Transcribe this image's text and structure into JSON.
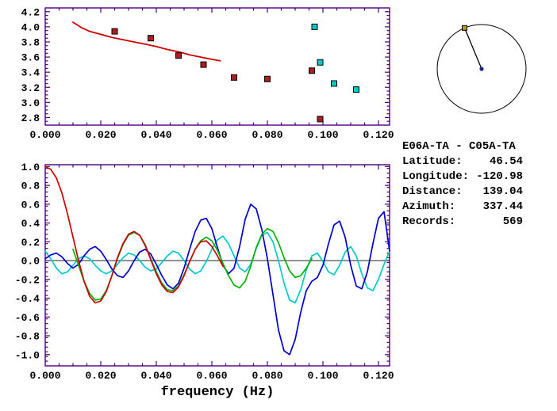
{
  "colors": {
    "frame": "#4b0082",
    "tick_text": "#000000",
    "background": "#ffffff",
    "dial_outline": "#000000",
    "dial_center": "#22228b",
    "dial_marker": "#b09a20",
    "zero_line": "#000000"
  },
  "station_info": {
    "pair": "E06A-TA - C05A-TA",
    "fields": [
      {
        "label": "Latitude:",
        "value": "46.54"
      },
      {
        "label": "Longitude:",
        "value": "-120.98"
      },
      {
        "label": "Distance:",
        "value": "139.04"
      },
      {
        "label": "Azimuth:",
        "value": "337.44"
      },
      {
        "label": "Records:",
        "value": "569"
      }
    ]
  },
  "chart_data": [
    {
      "type": "scatter",
      "name": "dispersion",
      "title": "",
      "xlabel": "",
      "ylabel": "",
      "xlim": [
        0,
        0.124
      ],
      "ylim": [
        2.7,
        4.25
      ],
      "grid": false,
      "x_ticks": [
        0,
        0.02,
        0.04,
        0.06,
        0.08,
        0.1,
        0.12
      ],
      "x_tick_labels": [
        "0.000",
        "0.020",
        "0.040",
        "0.060",
        "0.080",
        "0.100",
        "0.120"
      ],
      "y_ticks": [
        2.8,
        3.0,
        3.2,
        3.4,
        3.6,
        3.8,
        4.0,
        4.2
      ],
      "y_tick_labels": [
        "2.8",
        "3.0",
        "3.2",
        "3.4",
        "3.6",
        "3.8",
        "4.0",
        "4.2"
      ],
      "series": [
        {
          "name": "reference-dispersion-curve",
          "type": "line",
          "color": "#cc0000",
          "width": 1.8,
          "x": [
            0.01,
            0.013,
            0.016,
            0.02,
            0.024,
            0.028,
            0.032,
            0.036,
            0.04,
            0.044,
            0.048,
            0.052,
            0.056,
            0.06,
            0.063
          ],
          "y": [
            4.06,
            3.99,
            3.94,
            3.9,
            3.86,
            3.83,
            3.8,
            3.77,
            3.74,
            3.7,
            3.67,
            3.63,
            3.6,
            3.57,
            3.55
          ]
        },
        {
          "name": "phase-velocity-picks-red",
          "type": "square",
          "color": "#aa2020",
          "edge": "#000000",
          "size": 7,
          "x": [
            0.025,
            0.038,
            0.048,
            0.057,
            0.068,
            0.08,
            0.096,
            0.099
          ],
          "y": [
            3.94,
            3.85,
            3.62,
            3.5,
            3.33,
            3.31,
            3.42,
            2.78
          ]
        },
        {
          "name": "phase-velocity-picks-cyan",
          "type": "square",
          "color": "#00c8c8",
          "edge": "#000000",
          "size": 7,
          "x": [
            0.097,
            0.099,
            0.104,
            0.112
          ],
          "y": [
            4.0,
            3.53,
            3.25,
            3.17
          ]
        }
      ]
    },
    {
      "type": "line",
      "name": "cross-spectrum",
      "title": "",
      "xlabel": "frequency (Hz)",
      "ylabel": "",
      "xlim": [
        0,
        0.124
      ],
      "ylim": [
        -1.12,
        1.02
      ],
      "grid": false,
      "zero_line": true,
      "x_ticks": [
        0,
        0.02,
        0.04,
        0.06,
        0.08,
        0.1,
        0.12
      ],
      "x_tick_labels": [
        "0.000",
        "0.020",
        "0.040",
        "0.060",
        "0.080",
        "0.100",
        "0.120"
      ],
      "y_ticks": [
        -1.0,
        -0.8,
        -0.6,
        -0.4,
        -0.2,
        0.0,
        0.2,
        0.4,
        0.6,
        0.8,
        1.0
      ],
      "y_tick_labels": [
        "-1.0",
        "-0.8",
        "-0.6",
        "-0.4",
        "-0.2",
        "0.0",
        "0.2",
        "0.4",
        "0.6",
        "0.8",
        "1.0"
      ],
      "series": [
        {
          "name": "spectrum-cyan",
          "type": "line",
          "color": "#00c8c8",
          "width": 1.7,
          "x0": 0,
          "dx": 0.002,
          "y": [
            0.1,
            0.02,
            -0.08,
            -0.14,
            -0.12,
            -0.05,
            0.02,
            0.05,
            0.02,
            -0.05,
            -0.11,
            -0.14,
            -0.11,
            -0.04,
            0.03,
            0.08,
            0.06,
            0.0,
            -0.07,
            -0.11,
            -0.09,
            -0.02,
            0.05,
            0.1,
            0.08,
            0.0,
            -0.09,
            -0.14,
            -0.11,
            -0.01,
            0.12,
            0.22,
            0.26,
            0.18,
            0.05,
            -0.08,
            -0.12,
            -0.04,
            0.13,
            0.27,
            0.3,
            0.2,
            0.0,
            -0.24,
            -0.42,
            -0.45,
            -0.31,
            -0.1,
            0.05,
            0.08,
            -0.01,
            -0.12,
            -0.15,
            -0.05,
            0.09,
            0.15,
            0.05,
            -0.14,
            -0.29,
            -0.32,
            -0.2,
            -0.04,
            0.1
          ]
        },
        {
          "name": "spectrum-blue",
          "type": "line",
          "color": "#0000cc",
          "width": 1.7,
          "x0": 0,
          "dx": 0.002,
          "y": [
            0.02,
            0.06,
            0.08,
            0.04,
            -0.03,
            -0.08,
            -0.04,
            0.05,
            0.12,
            0.15,
            0.1,
            0.01,
            -0.09,
            -0.16,
            -0.18,
            -0.11,
            0.0,
            0.09,
            0.12,
            0.07,
            -0.04,
            -0.16,
            -0.26,
            -0.3,
            -0.24,
            -0.08,
            0.12,
            0.31,
            0.43,
            0.45,
            0.34,
            0.14,
            -0.05,
            -0.14,
            -0.08,
            0.15,
            0.44,
            0.6,
            0.55,
            0.33,
            0.02,
            -0.36,
            -0.74,
            -0.96,
            -1.0,
            -0.84,
            -0.55,
            -0.32,
            -0.22,
            -0.18,
            -0.05,
            0.18,
            0.38,
            0.42,
            0.25,
            -0.05,
            -0.27,
            -0.3,
            -0.12,
            0.18,
            0.45,
            0.52,
            0.1
          ]
        },
        {
          "name": "fit-green",
          "type": "line",
          "color": "#00b400",
          "width": 1.7,
          "x0": 0.01,
          "dx": 0.002,
          "y": [
            0.12,
            -0.05,
            -0.22,
            -0.35,
            -0.42,
            -0.41,
            -0.32,
            -0.16,
            0.02,
            0.17,
            0.27,
            0.3,
            0.27,
            0.17,
            0.02,
            -0.12,
            -0.24,
            -0.31,
            -0.32,
            -0.27,
            -0.15,
            -0.01,
            0.12,
            0.21,
            0.25,
            0.21,
            0.11,
            -0.03,
            -0.16,
            -0.26,
            -0.29,
            -0.22,
            -0.06,
            0.14,
            0.28,
            0.34,
            0.31,
            0.19,
            0.03,
            -0.11,
            -0.18,
            -0.16,
            -0.08,
            0.02
          ]
        },
        {
          "name": "fit-red",
          "type": "line",
          "color": "#cc0000",
          "width": 1.7,
          "x0": 0,
          "dx": 0.002,
          "y": [
            1.0,
            0.97,
            0.88,
            0.72,
            0.5,
            0.25,
            0.0,
            -0.22,
            -0.38,
            -0.45,
            -0.43,
            -0.33,
            -0.16,
            0.03,
            0.18,
            0.28,
            0.31,
            0.27,
            0.16,
            0.01,
            -0.14,
            -0.26,
            -0.33,
            -0.34,
            -0.28,
            -0.16,
            -0.01,
            0.12,
            0.2,
            0.21,
            0.15,
            0.05,
            -0.06
          ]
        }
      ]
    },
    {
      "type": "dial",
      "name": "azimuth-dial",
      "azimuth_deg": 337.44
    }
  ]
}
